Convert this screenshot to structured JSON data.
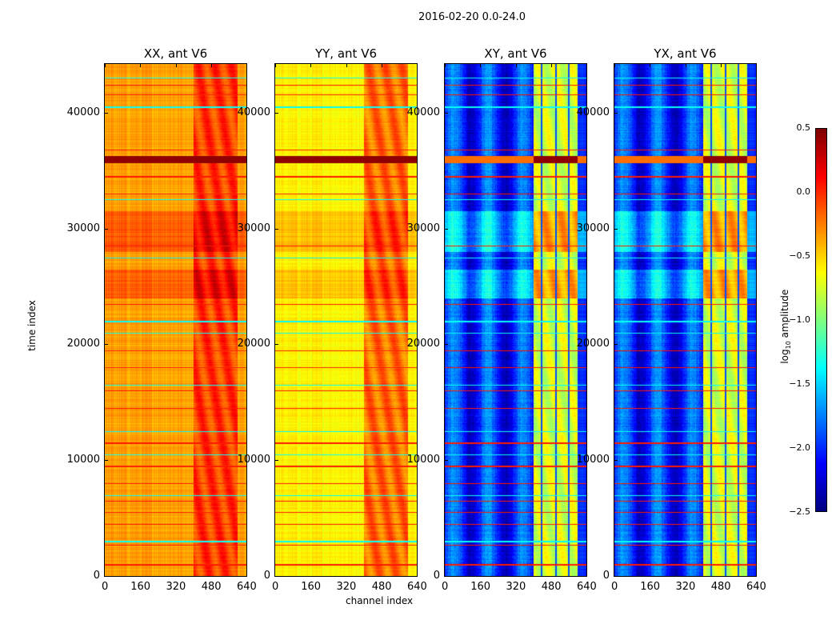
{
  "chart_data": {
    "type": "heatmap",
    "title": "2016-02-20 0.0-24.0",
    "xlabel": "channel index",
    "ylabel": "time index",
    "xlim": [
      0,
      640
    ],
    "ylim": [
      0,
      44200
    ],
    "x_ticks": [
      "0",
      "160",
      "320",
      "480",
      "640"
    ],
    "y_ticks": [
      "0",
      "10000",
      "20000",
      "30000",
      "40000"
    ],
    "y_tick_values": [
      0,
      10000,
      20000,
      30000,
      40000
    ],
    "x_tick_values": [
      0,
      160,
      320,
      480,
      640
    ],
    "colorbar": {
      "label_main": "log",
      "label_sub": "10",
      "label_rest": " amplitude",
      "range": [
        -2.5,
        0.5
      ],
      "colormap": "jet",
      "ticks": [
        "0.5",
        "0.0",
        "−0.5",
        "−1.0",
        "−1.5",
        "−2.0",
        "−2.5"
      ],
      "tick_values": [
        0.5,
        0,
        -0.5,
        -1,
        -1.5,
        -2,
        -2.5
      ]
    },
    "panels": [
      {
        "title": "XX, ant V6",
        "base": -0.35,
        "rfi_level": -0.1,
        "band_boost": 0.2,
        "show_ylabel": true
      },
      {
        "title": "YY, ant V6",
        "base": -0.6,
        "rfi_level": -0.25,
        "band_boost": 0.15,
        "show_ylabel": false
      },
      {
        "title": "XY, ant V6",
        "base": -2.0,
        "rfi_level": -0.8,
        "band_boost": 0.4,
        "show_ylabel": false
      },
      {
        "title": "YX, ant V6",
        "base": -2.0,
        "rfi_level": -0.8,
        "band_boost": 0.4,
        "show_ylabel": false
      }
    ],
    "rfi_channels": [
      400,
      600
    ],
    "high_time_bands": [
      [
        24000,
        26500
      ],
      [
        28000,
        31500
      ]
    ],
    "saturated_time_band": [
      35700,
      36300
    ],
    "red_lines": [
      1000,
      2700,
      4500,
      5500,
      6500,
      8000,
      9500,
      11500,
      14500,
      16000,
      18000,
      19500,
      23500,
      28500,
      33000,
      34500,
      36800,
      41600,
      42400
    ],
    "cyan_lines": [
      3000,
      7000,
      10500,
      12500,
      16500,
      21000,
      22000,
      27500,
      32500,
      40500,
      43000
    ]
  }
}
